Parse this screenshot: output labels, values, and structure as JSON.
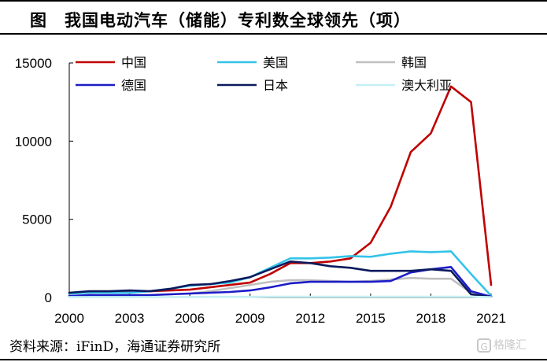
{
  "header": {
    "title": "图　我国电动汽车（储能）专利数全球领先（项）"
  },
  "footer": {
    "source": "资料来源：iFinD，海通证券研究所",
    "watermark": "格隆汇"
  },
  "chart_data": {
    "type": "line",
    "title": "我国电动汽车（储能）专利数全球领先（项）",
    "xlim": [
      2000,
      2021
    ],
    "ylim": [
      0,
      15000
    ],
    "x_ticks": [
      2000,
      2003,
      2006,
      2009,
      2012,
      2015,
      2018,
      2021
    ],
    "y_ticks": [
      0,
      5000,
      10000,
      15000
    ],
    "legend_position": "top",
    "x": [
      2000,
      2001,
      2002,
      2003,
      2004,
      2005,
      2006,
      2007,
      2008,
      2009,
      2010,
      2011,
      2012,
      2013,
      2014,
      2015,
      2016,
      2017,
      2018,
      2019,
      2020,
      2021
    ],
    "series": [
      {
        "name": "中国",
        "color": "#c00000",
        "values": [
          300,
          300,
          350,
          350,
          400,
          450,
          500,
          650,
          800,
          950,
          1500,
          2200,
          2200,
          2300,
          2500,
          3500,
          5800,
          9300,
          10500,
          13500,
          12500,
          800
        ]
      },
      {
        "name": "美国",
        "color": "#33c3e8",
        "values": [
          250,
          300,
          300,
          300,
          400,
          550,
          750,
          850,
          950,
          1300,
          1900,
          2500,
          2500,
          2550,
          2650,
          2600,
          2800,
          2950,
          2900,
          2950,
          1500,
          100
        ]
      },
      {
        "name": "韩国",
        "color": "#bfbfbf",
        "values": [
          100,
          100,
          100,
          150,
          150,
          200,
          250,
          400,
          600,
          800,
          1000,
          1100,
          1100,
          1050,
          1000,
          1050,
          1150,
          1250,
          1200,
          1200,
          300,
          50
        ]
      },
      {
        "name": "德国",
        "color": "#1c1cc8",
        "values": [
          100,
          150,
          150,
          150,
          150,
          200,
          250,
          300,
          350,
          450,
          650,
          900,
          1000,
          1000,
          1000,
          1000,
          1050,
          1600,
          1800,
          1950,
          400,
          50
        ]
      },
      {
        "name": "日本",
        "color": "#0b1a5e",
        "values": [
          300,
          400,
          400,
          450,
          400,
          550,
          800,
          850,
          1050,
          1300,
          1800,
          2300,
          2200,
          2000,
          1900,
          1700,
          1700,
          1700,
          1800,
          1700,
          200,
          30
        ]
      },
      {
        "name": "澳大利亚",
        "color": "#c4f0f4",
        "values": [
          30,
          30,
          30,
          30,
          30,
          30,
          30,
          40,
          40,
          40,
          50,
          50,
          50,
          50,
          50,
          50,
          50,
          50,
          50,
          50,
          50,
          20
        ]
      }
    ]
  }
}
